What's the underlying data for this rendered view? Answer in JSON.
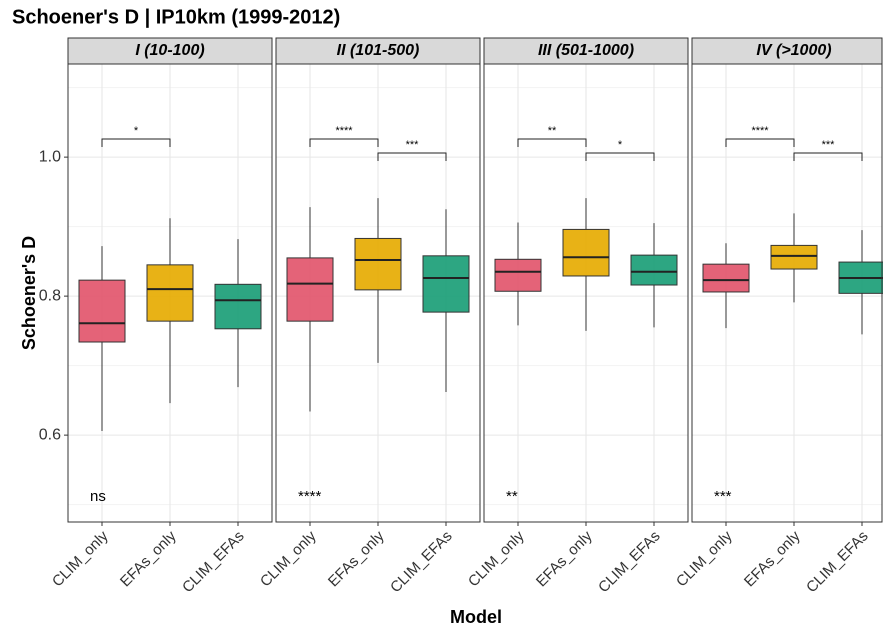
{
  "title": "Schoener's D | IP10km (1999-2012)",
  "xlabel": "Model",
  "ylabel": "Schoener's D",
  "ylim": [
    0.475,
    1.134
  ],
  "yticks": [
    0.6,
    0.8,
    {
      "value": 1,
      "label": "1.0"
    }
  ],
  "y_minor_ticks": [
    0.5,
    0.7,
    0.9,
    1.1
  ],
  "grid": true,
  "chart_data": [
    {
      "type": "box",
      "title": "I (10-100)",
      "categories": [
        "CLIM_only",
        "EFAs_only",
        "CLIM_EFAs"
      ],
      "colors": [
        "#e2566d",
        "#e6ab02",
        "#1b9e77"
      ],
      "boxes": [
        {
          "min": 0.606,
          "q1": 0.734,
          "median": 0.761,
          "q3": 0.823,
          "max": 0.872
        },
        {
          "min": 0.646,
          "q1": 0.764,
          "median": 0.81,
          "q3": 0.845,
          "max": 0.912
        },
        {
          "min": 0.669,
          "q1": 0.753,
          "median": 0.794,
          "q3": 0.817,
          "max": 0.882
        }
      ],
      "comparisons": [
        {
          "pair": [
            "CLIM_only",
            "EFAs_only"
          ],
          "label": "*",
          "y": 1.026
        }
      ],
      "annotation": "ns"
    },
    {
      "type": "box",
      "title": "II (101-500)",
      "categories": [
        "CLIM_only",
        "EFAs_only",
        "CLIM_EFAs"
      ],
      "colors": [
        "#e2566d",
        "#e6ab02",
        "#1b9e77"
      ],
      "boxes": [
        {
          "min": 0.634,
          "q1": 0.764,
          "median": 0.818,
          "q3": 0.855,
          "max": 0.928
        },
        {
          "min": 0.704,
          "q1": 0.809,
          "median": 0.852,
          "q3": 0.883,
          "max": 0.941
        },
        {
          "min": 0.662,
          "q1": 0.777,
          "median": 0.826,
          "q3": 0.858,
          "max": 0.925
        }
      ],
      "comparisons": [
        {
          "pair": [
            "CLIM_only",
            "EFAs_only"
          ],
          "label": "****",
          "y": 1.026
        },
        {
          "pair": [
            "EFAs_only",
            "CLIM_EFAs"
          ],
          "label": "***",
          "y": 1.006
        }
      ],
      "annotation": "****"
    },
    {
      "type": "box",
      "title": "III (501-1000)",
      "categories": [
        "CLIM_only",
        "EFAs_only",
        "CLIM_EFAs"
      ],
      "colors": [
        "#e2566d",
        "#e6ab02",
        "#1b9e77"
      ],
      "boxes": [
        {
          "min": 0.758,
          "q1": 0.807,
          "median": 0.835,
          "q3": 0.853,
          "max": 0.906
        },
        {
          "min": 0.75,
          "q1": 0.829,
          "median": 0.856,
          "q3": 0.896,
          "max": 0.941
        },
        {
          "min": 0.755,
          "q1": 0.816,
          "median": 0.835,
          "q3": 0.859,
          "max": 0.905
        }
      ],
      "comparisons": [
        {
          "pair": [
            "CLIM_only",
            "EFAs_only"
          ],
          "label": "**",
          "y": 1.026
        },
        {
          "pair": [
            "EFAs_only",
            "CLIM_EFAs"
          ],
          "label": "*",
          "y": 1.006
        }
      ],
      "annotation": "**"
    },
    {
      "type": "box",
      "title": "IV (>1000)",
      "categories": [
        "CLIM_only",
        "EFAs_only",
        "CLIM_EFAs"
      ],
      "colors": [
        "#e2566d",
        "#e6ab02",
        "#1b9e77"
      ],
      "boxes": [
        {
          "min": 0.754,
          "q1": 0.806,
          "median": 0.823,
          "q3": 0.846,
          "max": 0.876
        },
        {
          "min": 0.791,
          "q1": 0.839,
          "median": 0.858,
          "q3": 0.873,
          "max": 0.919
        },
        {
          "min": 0.745,
          "q1": 0.804,
          "median": 0.826,
          "q3": 0.849,
          "max": 0.895
        }
      ],
      "comparisons": [
        {
          "pair": [
            "CLIM_only",
            "EFAs_only"
          ],
          "label": "****",
          "y": 1.026
        },
        {
          "pair": [
            "EFAs_only",
            "CLIM_EFAs"
          ],
          "label": "***",
          "y": 1.006
        }
      ],
      "annotation": "***"
    }
  ]
}
